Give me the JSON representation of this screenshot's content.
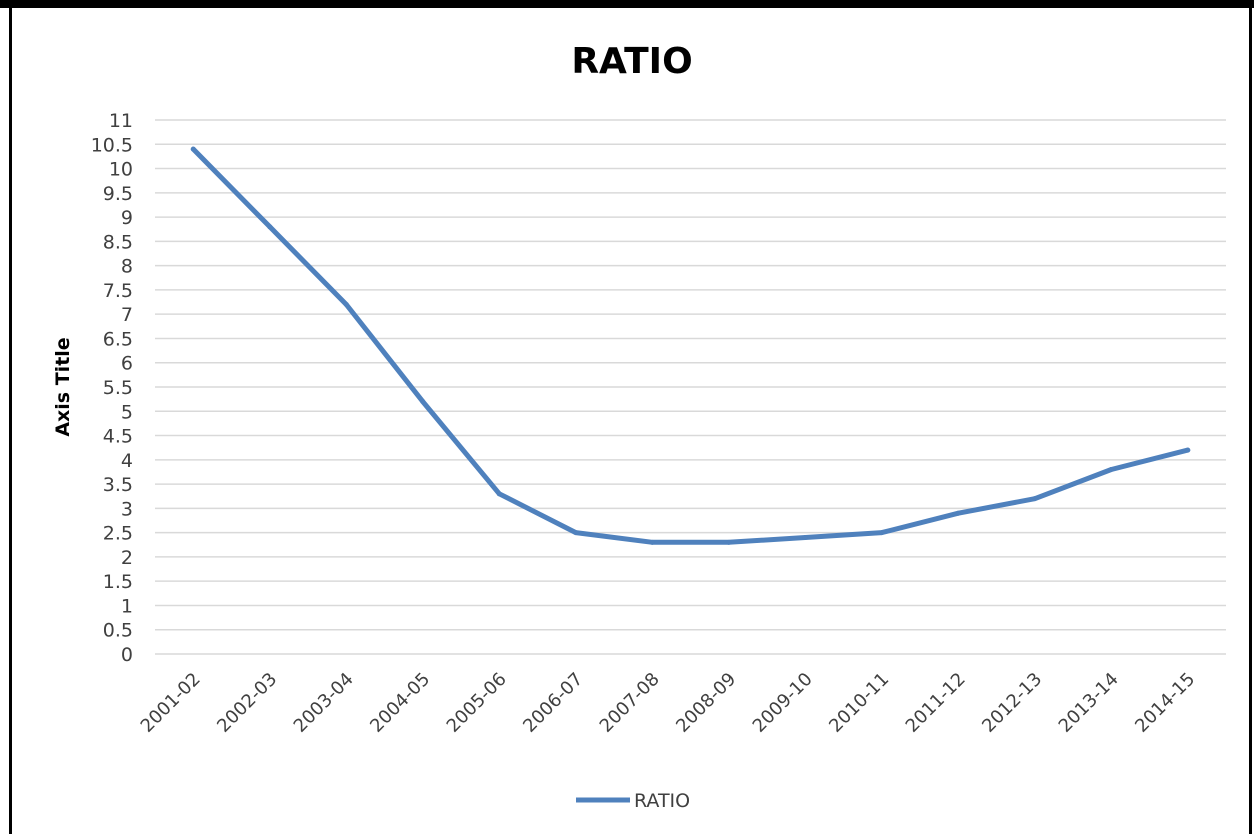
{
  "chart_data": {
    "type": "line",
    "title": "RATIO",
    "xlabel": "",
    "ylabel": "Axis Title",
    "categories": [
      "2001-02",
      "2002-03",
      "2003-04",
      "2004-05",
      "2005-06",
      "2006-07",
      "2007-08",
      "2008-09",
      "2009-10",
      "2010-11",
      "2011-12",
      "2012-13",
      "2013-14",
      "2014-15"
    ],
    "series": [
      {
        "name": "RATIO",
        "color": "#4F81BD",
        "values": [
          10.4,
          8.8,
          7.2,
          5.2,
          3.3,
          2.5,
          2.3,
          2.3,
          2.4,
          2.5,
          2.9,
          3.2,
          3.8,
          4.2
        ]
      }
    ],
    "ylim": [
      0,
      11
    ],
    "ytick_step": 0.5,
    "yticks": [
      "0",
      "0.5",
      "1",
      "1.5",
      "2",
      "2.5",
      "3",
      "3.5",
      "4",
      "4.5",
      "5",
      "5.5",
      "6",
      "6.5",
      "7",
      "7.5",
      "8",
      "8.5",
      "9",
      "9.5",
      "10",
      "10.5",
      "11"
    ],
    "grid": true,
    "legend": "bottom"
  }
}
